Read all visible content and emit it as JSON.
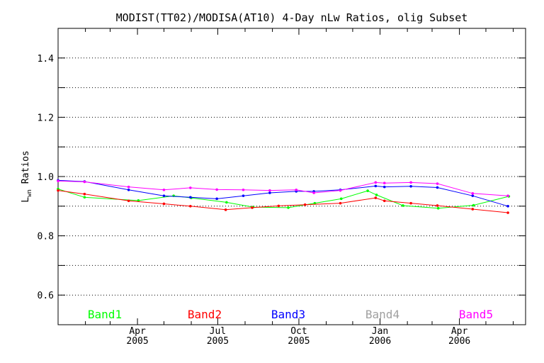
{
  "chart_data": {
    "type": "line",
    "title": "MODIST(TT02)/MODISA(AT10) 4-Day nLw Ratios, olig Subset",
    "xlabel": "",
    "ylabel": "L",
    "ylabel_sub": "wn",
    "ylabel_rest": " Ratios",
    "xlim": [
      "2005-01-01",
      "2006-06-15"
    ],
    "ylim": [
      0.5,
      1.5
    ],
    "yticks": [
      0.6,
      0.8,
      1.0,
      1.2,
      1.4
    ],
    "ytick_labels": [
      "0.6",
      "0.8",
      "1.0",
      "1.2",
      "1.4"
    ],
    "ygrid": [
      0.6,
      0.7,
      0.8,
      0.9,
      1.0,
      1.1,
      1.2,
      1.3,
      1.4
    ],
    "xticks": [
      {
        "date": "2005-04-01",
        "month": "Apr",
        "year": "2005"
      },
      {
        "date": "2005-07-01",
        "month": "Jul",
        "year": "2005"
      },
      {
        "date": "2005-10-01",
        "month": "Oct",
        "year": "2005"
      },
      {
        "date": "2006-01-01",
        "month": "Jan",
        "year": "2006"
      },
      {
        "date": "2006-04-01",
        "month": "Apr",
        "year": "2006"
      }
    ],
    "x_minor_ticks": [
      "2005-02-01",
      "2005-03-01",
      "2005-05-01",
      "2005-06-01",
      "2005-08-01",
      "2005-09-01",
      "2005-11-01",
      "2005-12-01",
      "2006-02-01",
      "2006-03-01",
      "2006-05-01",
      "2006-06-01"
    ],
    "grid": "horizontal dotted",
    "legend_placement": "bottom",
    "series": [
      {
        "name": "Band1",
        "color": "#00ff00",
        "x": [
          "2005-01-01",
          "2005-01-31",
          "2005-04-02",
          "2005-05-12",
          "2005-06-01",
          "2005-07-11",
          "2005-08-10",
          "2005-09-19",
          "2005-10-19",
          "2005-11-18",
          "2005-12-18",
          "2005-12-28",
          "2006-01-27",
          "2006-03-08",
          "2006-04-17",
          "2006-05-27"
        ],
        "values": [
          0.958,
          0.93,
          0.919,
          0.935,
          0.928,
          0.913,
          0.897,
          0.895,
          0.91,
          0.925,
          0.952,
          0.938,
          0.902,
          0.893,
          0.903,
          0.933
        ]
      },
      {
        "name": "Band2",
        "color": "#ff0000",
        "x": [
          "2005-01-01",
          "2005-01-31",
          "2005-03-22",
          "2005-05-01",
          "2005-05-31",
          "2005-07-10",
          "2005-08-09",
          "2005-09-08",
          "2005-10-08",
          "2005-11-17",
          "2005-12-27",
          "2006-01-06",
          "2006-02-05",
          "2006-03-07",
          "2006-04-16",
          "2006-05-26"
        ],
        "values": [
          0.953,
          0.941,
          0.918,
          0.908,
          0.9,
          0.888,
          0.895,
          0.901,
          0.905,
          0.91,
          0.928,
          0.918,
          0.91,
          0.902,
          0.89,
          0.878
        ]
      },
      {
        "name": "Band3",
        "color": "#0000ff",
        "x": [
          "2005-01-01",
          "2005-01-31",
          "2005-03-22",
          "2005-05-01",
          "2005-05-31",
          "2005-06-30",
          "2005-07-30",
          "2005-08-29",
          "2005-09-28",
          "2005-10-18",
          "2005-11-17",
          "2005-12-27",
          "2006-01-06",
          "2006-02-05",
          "2006-03-07",
          "2006-04-16",
          "2006-05-26"
        ],
        "values": [
          0.987,
          0.983,
          0.955,
          0.935,
          0.93,
          0.925,
          0.935,
          0.945,
          0.95,
          0.95,
          0.955,
          0.968,
          0.965,
          0.967,
          0.963,
          0.935,
          0.9
        ]
      },
      {
        "name": "Band4",
        "color": "#a0a0a0",
        "x": [],
        "values": []
      },
      {
        "name": "Band5",
        "color": "#ff00ff",
        "x": [
          "2005-01-01",
          "2005-01-31",
          "2005-03-22",
          "2005-05-01",
          "2005-05-31",
          "2005-06-30",
          "2005-07-30",
          "2005-08-29",
          "2005-09-28",
          "2005-10-18",
          "2005-11-17",
          "2005-12-27",
          "2006-01-06",
          "2006-02-05",
          "2006-03-07",
          "2006-04-16",
          "2006-05-26"
        ],
        "values": [
          0.985,
          0.982,
          0.965,
          0.955,
          0.962,
          0.956,
          0.955,
          0.953,
          0.955,
          0.945,
          0.953,
          0.98,
          0.978,
          0.98,
          0.976,
          0.943,
          0.935
        ]
      }
    ]
  }
}
